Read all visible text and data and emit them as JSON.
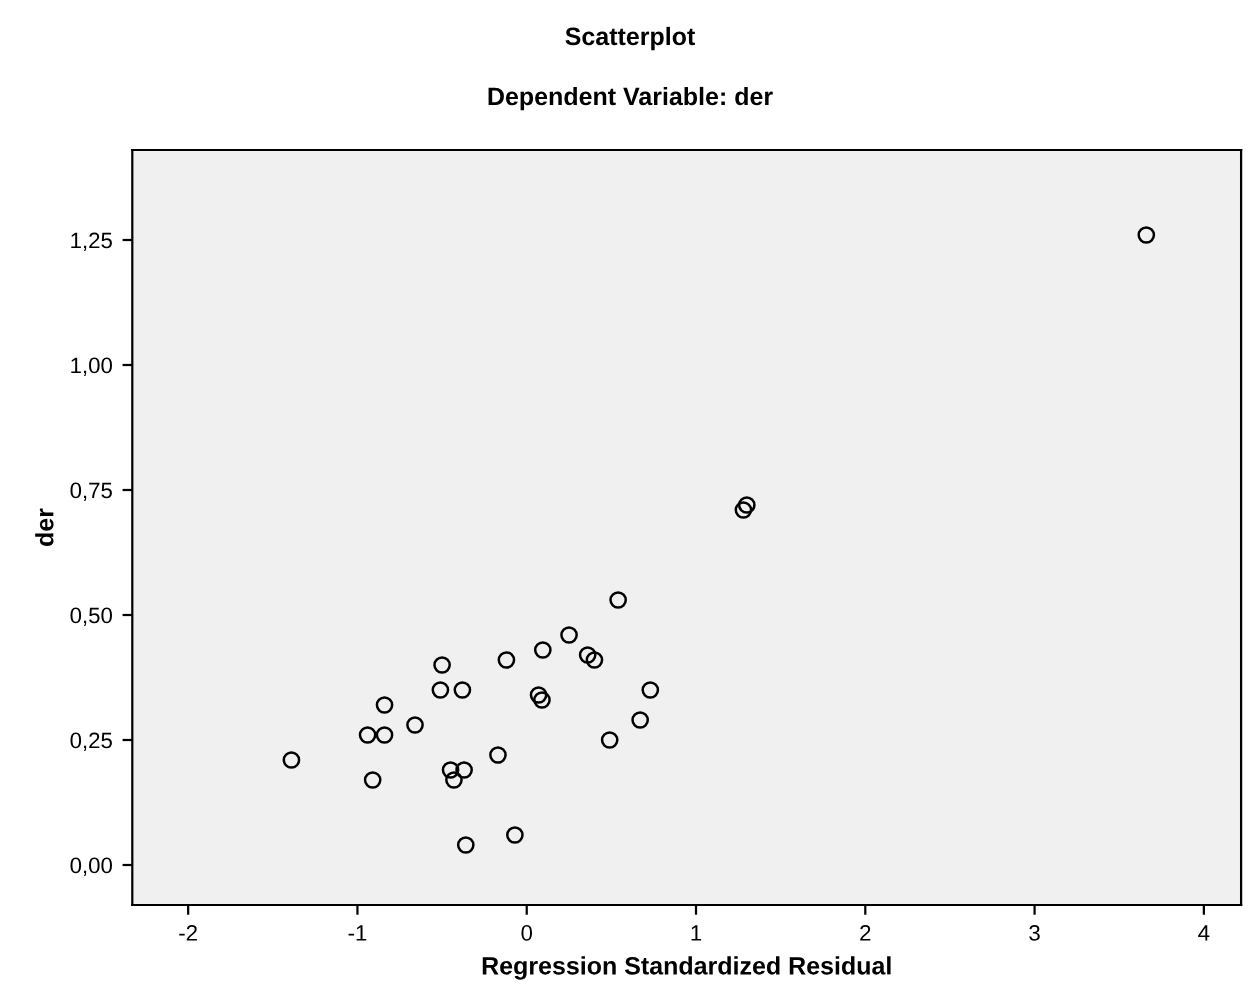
{
  "chart_data": {
    "type": "scatter",
    "title": "Scatterplot",
    "subtitle": "Dependent Variable: der",
    "xlabel": "Regression Standardized Residual",
    "ylabel": "der",
    "x": [
      3.66,
      1.28,
      1.3,
      0.54,
      0.25,
      0.095,
      0.36,
      0.4,
      -0.12,
      -0.5,
      -0.51,
      -0.38,
      0.73,
      0.07,
      0.09,
      -0.84,
      0.67,
      -0.66,
      -0.94,
      -0.84,
      0.49,
      -1.39,
      -0.17,
      -0.45,
      -0.37,
      -0.43,
      -0.91,
      -0.07,
      -0.36
    ],
    "values": [
      1.26,
      0.71,
      0.72,
      0.53,
      0.46,
      0.43,
      0.42,
      0.41,
      0.41,
      0.4,
      0.35,
      0.35,
      0.35,
      0.34,
      0.33,
      0.32,
      0.29,
      0.28,
      0.26,
      0.26,
      0.25,
      0.21,
      0.22,
      0.19,
      0.19,
      0.17,
      0.17,
      0.06,
      0.04
    ],
    "color": "#000000",
    "marker": "circle",
    "grid": false,
    "xlim": [
      -2.33,
      4.22
    ],
    "ylim": [
      -0.08,
      1.43
    ],
    "xticks": [
      {
        "value": -2,
        "label": "-2"
      },
      {
        "value": -1,
        "label": "-1"
      },
      0,
      1,
      2,
      3,
      4
    ],
    "yticks": [
      {
        "value": 0,
        "label": "0,00"
      },
      {
        "value": 0.25,
        "label": "0,25"
      },
      {
        "value": 0.5,
        "label": "0,50"
      },
      {
        "value": 0.75,
        "label": "0,75"
      },
      {
        "value": 1,
        "label": "1,00"
      },
      {
        "value": 1.25,
        "label": "1,25"
      }
    ]
  }
}
